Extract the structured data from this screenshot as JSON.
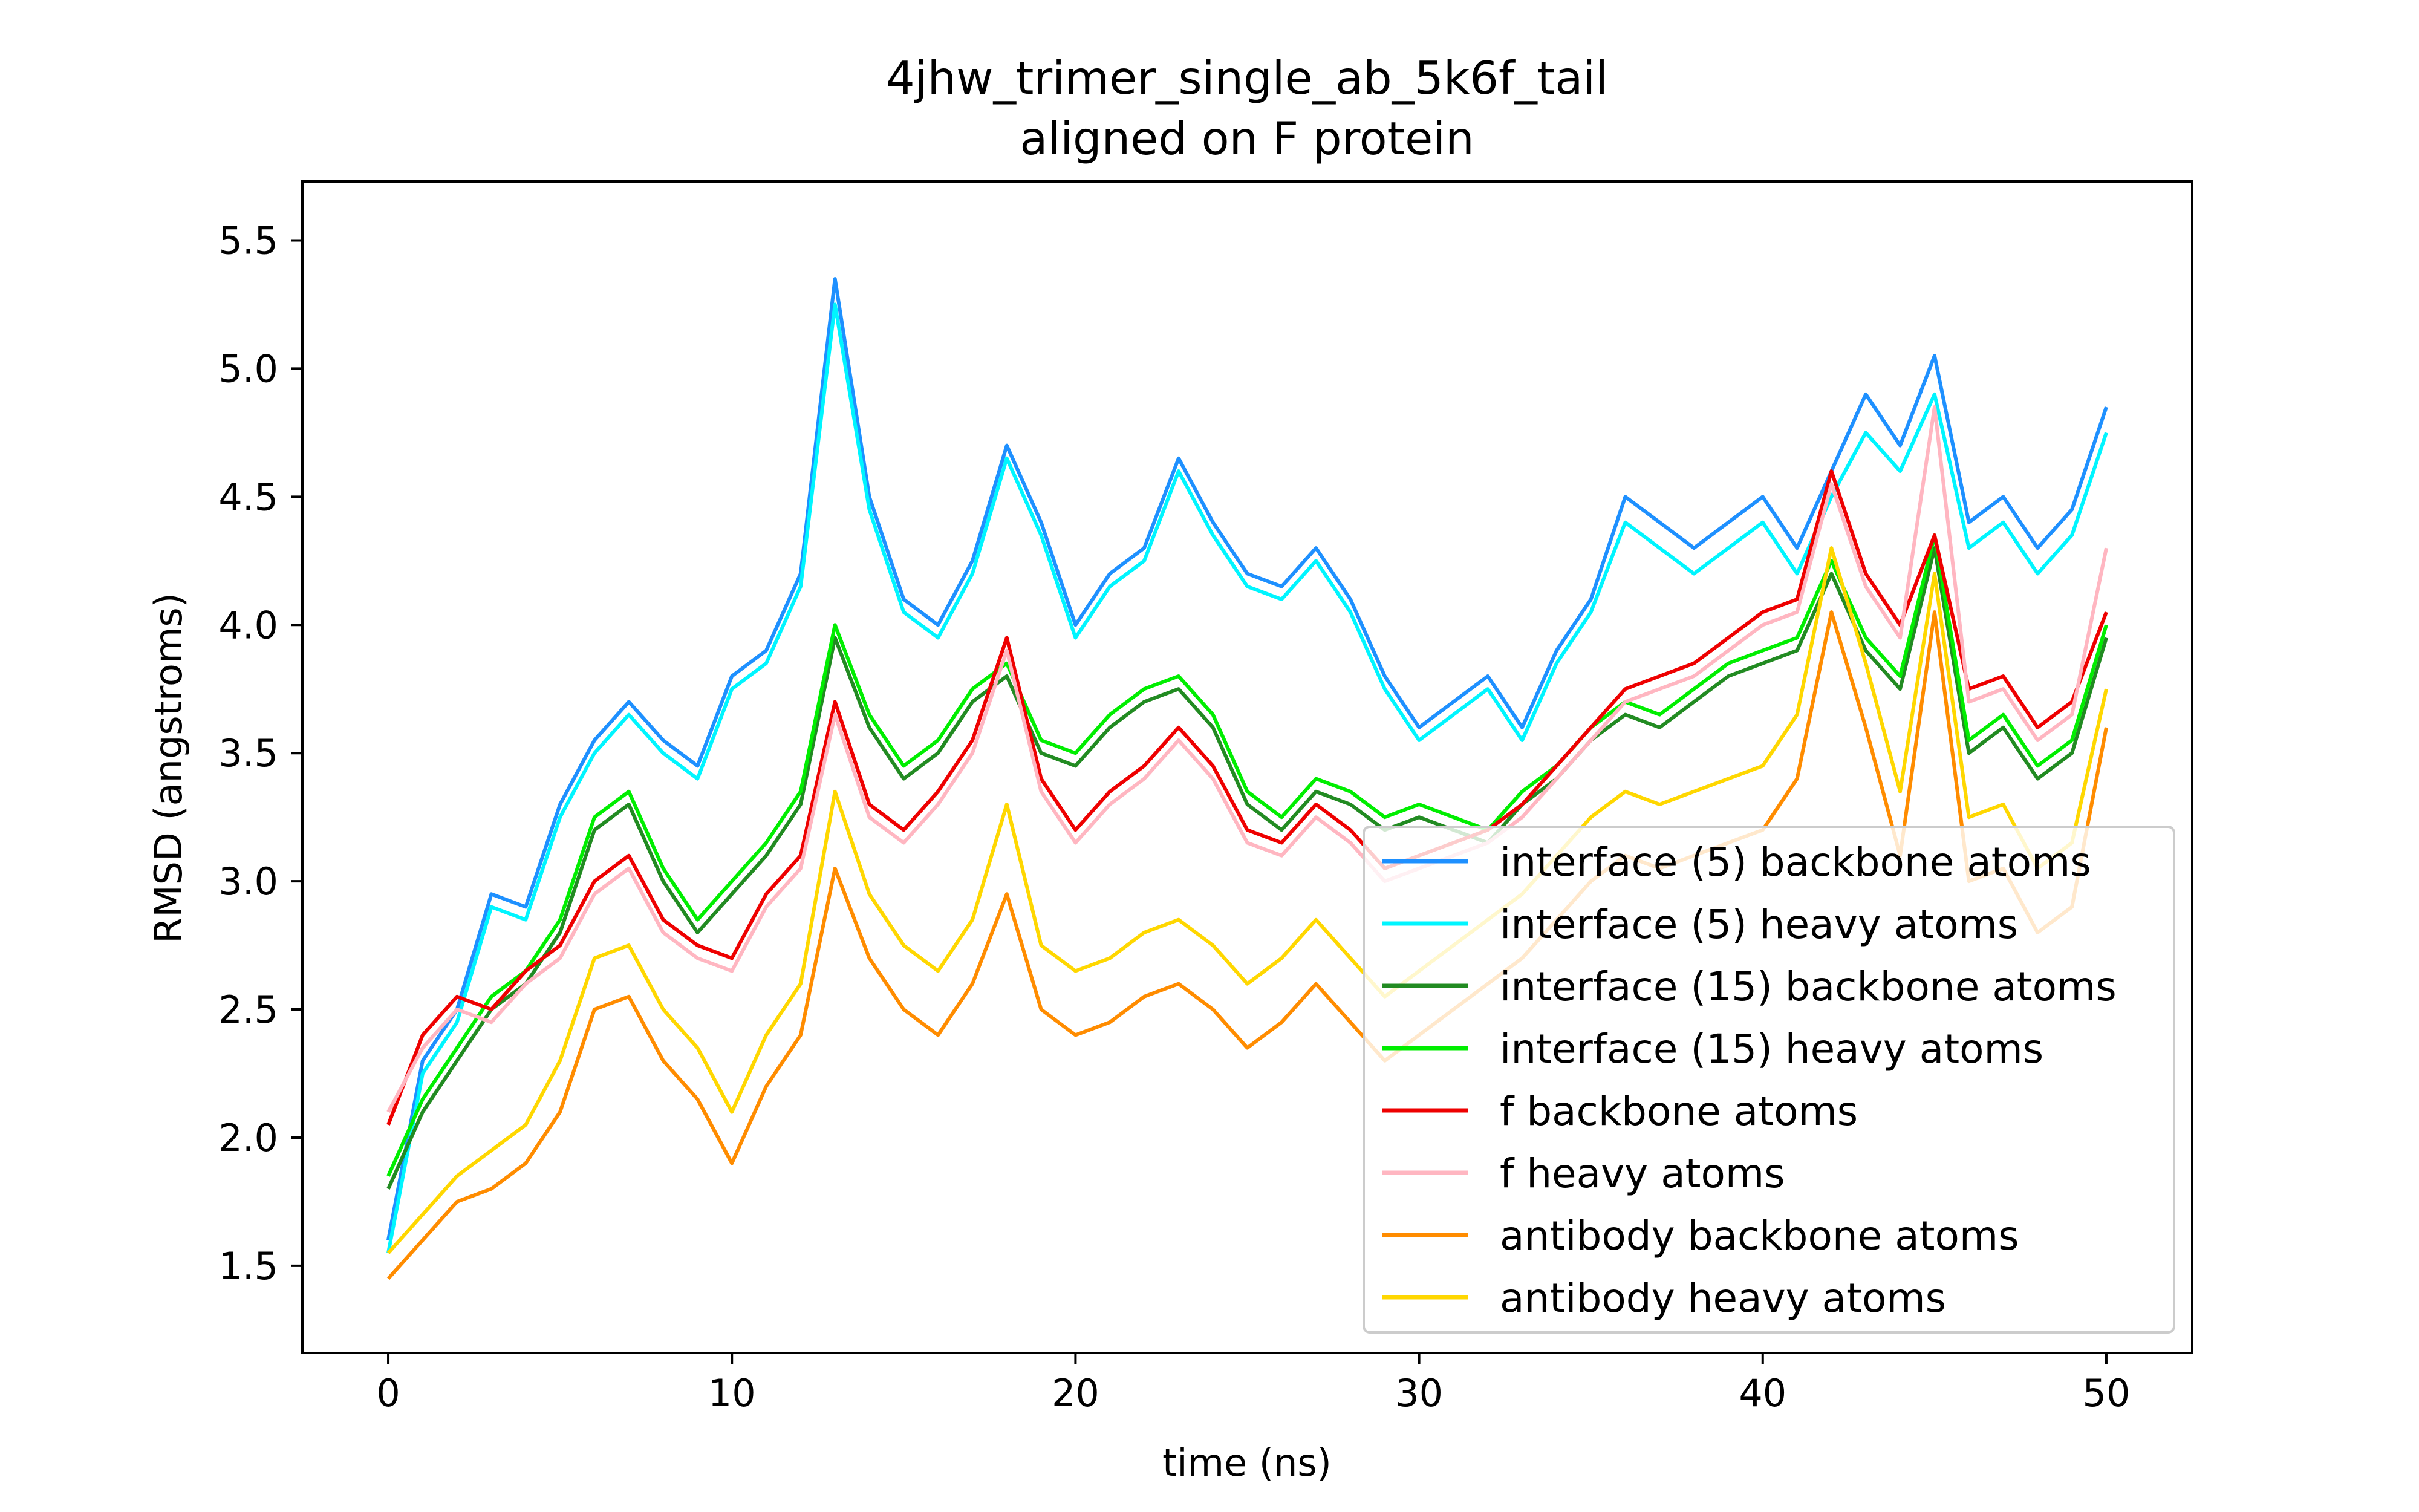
{
  "chart_data": {
    "type": "line",
    "title": "4jhw_trimer_single_ab_5k6f_tail",
    "subtitle": "aligned on F protein",
    "xlabel": "time (ns)",
    "ylabel": "RMSD (angstroms)",
    "xlim": [
      -2.5,
      52.5
    ],
    "ylim": [
      1.16,
      5.73
    ],
    "xticks": [
      0,
      10,
      20,
      30,
      40,
      50
    ],
    "xtick_labels": [
      "0",
      "10",
      "20",
      "30",
      "40",
      "50"
    ],
    "yticks": [
      1.5,
      2.0,
      2.5,
      3.0,
      3.5,
      4.0,
      4.5,
      5.0,
      5.5
    ],
    "ytick_labels": [
      "1.5",
      "2.0",
      "2.5",
      "3.0",
      "3.5",
      "4.0",
      "4.5",
      "5.0",
      "5.5"
    ],
    "grid": false,
    "legend_position": "lower right",
    "x": [
      0,
      1,
      2,
      3,
      4,
      5,
      6,
      7,
      8,
      9,
      10,
      11,
      12,
      13,
      14,
      15,
      16,
      17,
      18,
      19,
      20,
      21,
      22,
      23,
      24,
      25,
      26,
      27,
      28,
      29,
      30,
      31,
      32,
      33,
      34,
      35,
      36,
      37,
      38,
      39,
      40,
      41,
      42,
      43,
      44,
      45,
      46,
      47,
      48,
      49,
      50
    ],
    "series": [
      {
        "name": "interface (5) backbone atoms",
        "color": "#1e90ff",
        "values": [
          1.6,
          2.3,
          2.5,
          2.95,
          2.9,
          3.3,
          3.55,
          3.7,
          3.55,
          3.45,
          3.8,
          3.9,
          4.2,
          5.35,
          4.5,
          4.1,
          4.0,
          4.25,
          4.7,
          4.4,
          4.0,
          4.2,
          4.3,
          4.65,
          4.4,
          4.2,
          4.15,
          4.3,
          4.1,
          3.8,
          3.6,
          3.7,
          3.8,
          3.6,
          3.9,
          4.1,
          4.5,
          4.4,
          4.3,
          4.4,
          4.5,
          4.3,
          4.6,
          4.9,
          4.7,
          5.05,
          4.4,
          4.5,
          4.3,
          4.45,
          4.85
        ]
      },
      {
        "name": "interface (5) heavy atoms",
        "color": "#00f5ff",
        "values": [
          1.55,
          2.25,
          2.45,
          2.9,
          2.85,
          3.25,
          3.5,
          3.65,
          3.5,
          3.4,
          3.75,
          3.85,
          4.15,
          5.25,
          4.45,
          4.05,
          3.95,
          4.2,
          4.65,
          4.35,
          3.95,
          4.15,
          4.25,
          4.6,
          4.35,
          4.15,
          4.1,
          4.25,
          4.05,
          3.75,
          3.55,
          3.65,
          3.75,
          3.55,
          3.85,
          4.05,
          4.4,
          4.3,
          4.2,
          4.3,
          4.4,
          4.2,
          4.5,
          4.75,
          4.6,
          4.9,
          4.3,
          4.4,
          4.2,
          4.35,
          4.75
        ]
      },
      {
        "name": "interface (15) backbone atoms",
        "color": "#228b22",
        "values": [
          1.8,
          2.1,
          2.3,
          2.5,
          2.6,
          2.8,
          3.2,
          3.3,
          3.0,
          2.8,
          2.95,
          3.1,
          3.3,
          3.95,
          3.6,
          3.4,
          3.5,
          3.7,
          3.8,
          3.5,
          3.45,
          3.6,
          3.7,
          3.75,
          3.6,
          3.3,
          3.2,
          3.35,
          3.3,
          3.2,
          3.25,
          3.2,
          3.15,
          3.3,
          3.4,
          3.55,
          3.65,
          3.6,
          3.7,
          3.8,
          3.85,
          3.9,
          4.2,
          3.9,
          3.75,
          4.3,
          3.5,
          3.6,
          3.4,
          3.5,
          3.95
        ]
      },
      {
        "name": "interface (15) heavy atoms",
        "color": "#00ee00",
        "values": [
          1.85,
          2.15,
          2.35,
          2.55,
          2.65,
          2.85,
          3.25,
          3.35,
          3.05,
          2.85,
          3.0,
          3.15,
          3.35,
          4.0,
          3.65,
          3.45,
          3.55,
          3.75,
          3.85,
          3.55,
          3.5,
          3.65,
          3.75,
          3.8,
          3.65,
          3.35,
          3.25,
          3.4,
          3.35,
          3.25,
          3.3,
          3.25,
          3.2,
          3.35,
          3.45,
          3.6,
          3.7,
          3.65,
          3.75,
          3.85,
          3.9,
          3.95,
          4.25,
          3.95,
          3.8,
          4.35,
          3.55,
          3.65,
          3.45,
          3.55,
          4.0
        ]
      },
      {
        "name": "f backbone atoms",
        "color": "#ee0000",
        "values": [
          2.05,
          2.4,
          2.55,
          2.5,
          2.65,
          2.75,
          3.0,
          3.1,
          2.85,
          2.75,
          2.7,
          2.95,
          3.1,
          3.7,
          3.3,
          3.2,
          3.35,
          3.55,
          3.95,
          3.4,
          3.2,
          3.35,
          3.45,
          3.6,
          3.45,
          3.2,
          3.15,
          3.3,
          3.2,
          3.05,
          3.1,
          3.15,
          3.2,
          3.3,
          3.45,
          3.6,
          3.75,
          3.8,
          3.85,
          3.95,
          4.05,
          4.1,
          4.6,
          4.2,
          4.0,
          4.35,
          3.75,
          3.8,
          3.6,
          3.7,
          4.05
        ]
      },
      {
        "name": "f heavy atoms",
        "color": "#ffb6c1",
        "values": [
          2.1,
          2.35,
          2.5,
          2.45,
          2.6,
          2.7,
          2.95,
          3.05,
          2.8,
          2.7,
          2.65,
          2.9,
          3.05,
          3.65,
          3.25,
          3.15,
          3.3,
          3.5,
          3.9,
          3.35,
          3.15,
          3.3,
          3.4,
          3.55,
          3.4,
          3.15,
          3.1,
          3.25,
          3.15,
          3.0,
          3.05,
          3.1,
          3.15,
          3.25,
          3.4,
          3.55,
          3.7,
          3.75,
          3.8,
          3.9,
          4.0,
          4.05,
          4.55,
          4.15,
          3.95,
          4.85,
          3.7,
          3.75,
          3.55,
          3.65,
          4.3
        ]
      },
      {
        "name": "antibody backbone atoms",
        "color": "#ff8c00",
        "values": [
          1.45,
          1.6,
          1.75,
          1.8,
          1.9,
          2.1,
          2.5,
          2.55,
          2.3,
          2.15,
          1.9,
          2.2,
          2.4,
          3.05,
          2.7,
          2.5,
          2.4,
          2.6,
          2.95,
          2.5,
          2.4,
          2.45,
          2.55,
          2.6,
          2.5,
          2.35,
          2.45,
          2.6,
          2.45,
          2.3,
          2.4,
          2.5,
          2.6,
          2.7,
          2.85,
          3.0,
          3.1,
          3.05,
          3.1,
          3.15,
          3.2,
          3.4,
          4.05,
          3.6,
          3.1,
          4.05,
          3.0,
          3.05,
          2.8,
          2.9,
          3.6
        ]
      },
      {
        "name": "antibody heavy atoms",
        "color": "#ffd700",
        "values": [
          1.55,
          1.7,
          1.85,
          1.95,
          2.05,
          2.3,
          2.7,
          2.75,
          2.5,
          2.35,
          2.1,
          2.4,
          2.6,
          3.35,
          2.95,
          2.75,
          2.65,
          2.85,
          3.3,
          2.75,
          2.65,
          2.7,
          2.8,
          2.85,
          2.75,
          2.6,
          2.7,
          2.85,
          2.7,
          2.55,
          2.65,
          2.75,
          2.85,
          2.95,
          3.1,
          3.25,
          3.35,
          3.3,
          3.35,
          3.4,
          3.45,
          3.65,
          4.3,
          3.85,
          3.35,
          4.2,
          3.25,
          3.3,
          3.05,
          3.15,
          3.75
        ]
      }
    ]
  }
}
